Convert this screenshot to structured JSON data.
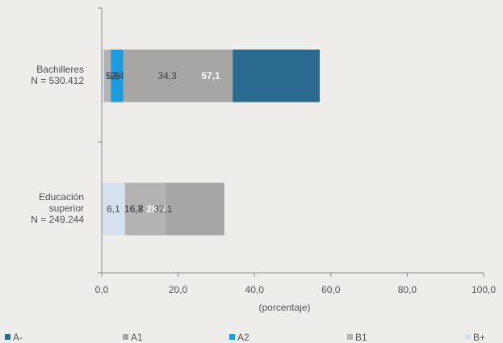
{
  "chart_data": {
    "type": "bar",
    "orientation": "horizontal",
    "stacked": true,
    "x_label": "(porcentaje)",
    "xlim": [
      0,
      100
    ],
    "x_ticks": [
      "0,0",
      "20,0",
      "40,0",
      "60,0",
      "80,0",
      "100,0"
    ],
    "grid": false,
    "legend_position": "bottom",
    "categories": [
      {
        "label": "Bachilleres",
        "n_label": "N = 530.412"
      },
      {
        "label": "Educación superior",
        "n_label": "N = 249.244"
      }
    ],
    "series": [
      {
        "name": "A-",
        "color": "#2b6a8f",
        "values": [
          57.1,
          28.3
        ],
        "value_labels": [
          "57,1",
          "28.3"
        ],
        "label_color": "#ffffff"
      },
      {
        "name": "A1",
        "color": "#a8a6a4",
        "values": [
          34.3,
          32.1
        ],
        "value_labels": [
          "34,3",
          "32,1"
        ],
        "label_color": "#3f3f3f"
      },
      {
        "name": "A2",
        "color": "#1b9be0",
        "values": [
          5.6,
          16.7
        ],
        "value_labels": [
          "5,6",
          "16,7"
        ],
        "label_color": "#1d4f7a"
      },
      {
        "name": "B1",
        "color": "#b5b3b1",
        "values": [
          2.4,
          16.8
        ],
        "value_labels": [
          "2,4",
          "16,8"
        ],
        "label_color": "#3f3f3f"
      },
      {
        "name": "B+",
        "color": "#d5e1ec",
        "values": [
          0.6,
          6.1
        ],
        "value_labels": [
          "0,6",
          "6,1"
        ],
        "label_color": "#4f4f4f"
      }
    ]
  }
}
